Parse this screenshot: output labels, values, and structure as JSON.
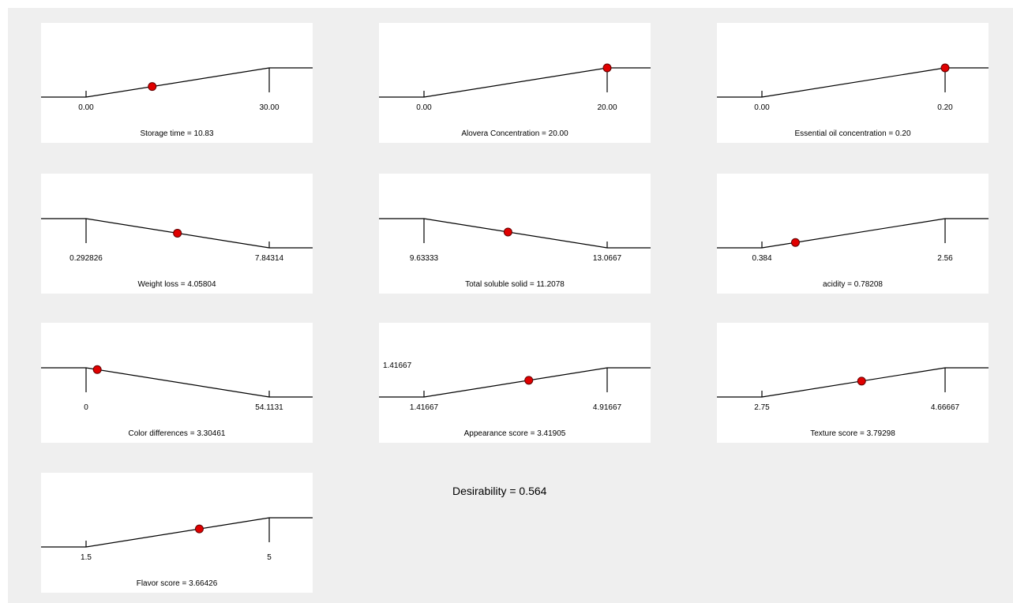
{
  "desirability": "Desirability = 0.564",
  "chart_data": [
    {
      "type": "line",
      "caption": "Storage time = 10.83",
      "x_labels": [
        "0.00",
        "30.00"
      ],
      "range": [
        0,
        30
      ],
      "value": 10.83,
      "shape": "ramp-up"
    },
    {
      "type": "line",
      "caption": "Alovera Concentration = 20.00",
      "x_labels": [
        "0.00",
        "20.00"
      ],
      "range": [
        0,
        20
      ],
      "value": 20.0,
      "shape": "ramp-up"
    },
    {
      "type": "line",
      "caption": "Essential oil concentration = 0.20",
      "x_labels": [
        "0.00",
        "0.20"
      ],
      "range": [
        0,
        0.2
      ],
      "value": 0.2,
      "shape": "ramp-up"
    },
    {
      "type": "line",
      "caption": "Weight loss = 4.05804",
      "x_labels": [
        "0.292826",
        "7.84314"
      ],
      "range": [
        0.292826,
        7.84314
      ],
      "value": 4.05804,
      "shape": "ramp-down"
    },
    {
      "type": "line",
      "caption": "Total soluble solid = 11.2078",
      "x_labels": [
        "9.63333",
        "13.0667"
      ],
      "range": [
        9.63333,
        13.0667
      ],
      "value": 11.2078,
      "shape": "ramp-down"
    },
    {
      "type": "line",
      "caption": "acidity  = 0.78208",
      "x_labels": [
        "0.384",
        "2.56"
      ],
      "range": [
        0.384,
        2.56
      ],
      "value": 0.78208,
      "shape": "ramp-up"
    },
    {
      "type": "line",
      "caption": "Color differences = 3.30461",
      "x_labels": [
        "0",
        "54.1131"
      ],
      "range": [
        0,
        54.1131
      ],
      "value": 3.30461,
      "shape": "ramp-down"
    },
    {
      "type": "line",
      "caption": "Appearance score = 3.41905",
      "x_labels": [
        "1.41667",
        "4.91667"
      ],
      "extra_label": "1.41667",
      "range": [
        1.41667,
        4.91667
      ],
      "value": 3.41905,
      "shape": "ramp-up"
    },
    {
      "type": "line",
      "caption": "Texture score = 3.79298",
      "x_labels": [
        "2.75",
        "4.66667"
      ],
      "range": [
        2.75,
        4.66667
      ],
      "value": 3.79298,
      "shape": "ramp-up"
    },
    {
      "type": "line",
      "caption": "Flavor score = 3.66426",
      "x_labels": [
        "1.5",
        "5"
      ],
      "range": [
        1.5,
        5
      ],
      "value": 3.66426,
      "shape": "ramp-up"
    }
  ]
}
